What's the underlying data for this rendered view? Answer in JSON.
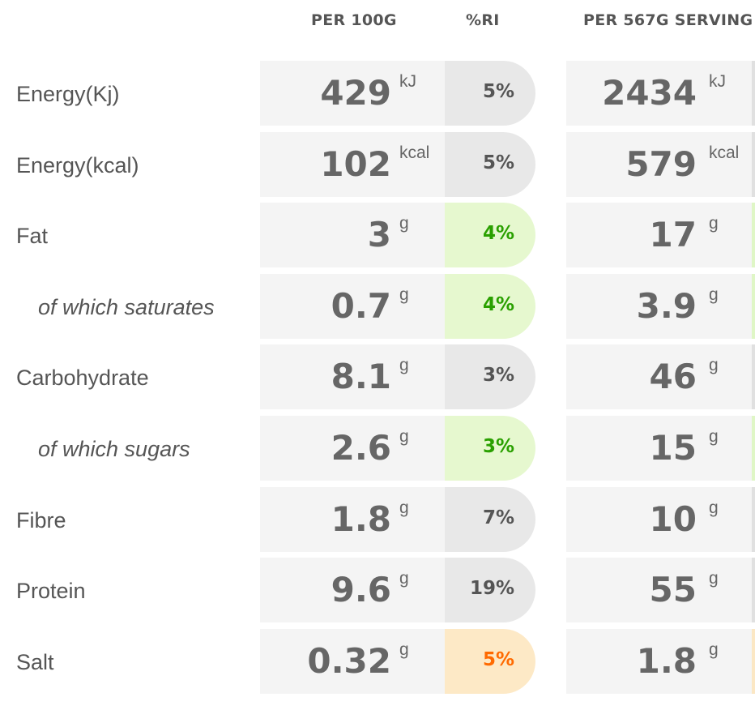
{
  "headers": {
    "per_100g": "PER 100G",
    "ri": "%RI",
    "per_serving": "PER 567G SERVING"
  },
  "rows": [
    {
      "label": "Energy(Kj)",
      "sub": false,
      "per100": "429",
      "per100_unit": "kJ",
      "ri": "5%",
      "ri_level": "neutral",
      "serving": "2434",
      "serving_unit": "kJ"
    },
    {
      "label": "Energy(kcal)",
      "sub": false,
      "per100": "102",
      "per100_unit": "kcal",
      "ri": "5%",
      "ri_level": "neutral",
      "serving": "579",
      "serving_unit": "kcal"
    },
    {
      "label": "Fat",
      "sub": false,
      "per100": "3",
      "per100_unit": "g",
      "ri": "4%",
      "ri_level": "green",
      "serving": "17",
      "serving_unit": "g"
    },
    {
      "label": "of which saturates",
      "sub": true,
      "per100": "0.7",
      "per100_unit": "g",
      "ri": "4%",
      "ri_level": "green",
      "serving": "3.9",
      "serving_unit": "g"
    },
    {
      "label": "Carbohydrate",
      "sub": false,
      "per100": "8.1",
      "per100_unit": "g",
      "ri": "3%",
      "ri_level": "neutral",
      "serving": "46",
      "serving_unit": "g"
    },
    {
      "label": "of which sugars",
      "sub": true,
      "per100": "2.6",
      "per100_unit": "g",
      "ri": "3%",
      "ri_level": "green",
      "serving": "15",
      "serving_unit": "g"
    },
    {
      "label": "Fibre",
      "sub": false,
      "per100": "1.8",
      "per100_unit": "g",
      "ri": "7%",
      "ri_level": "neutral",
      "serving": "10",
      "serving_unit": "g"
    },
    {
      "label": "Protein",
      "sub": false,
      "per100": "9.6",
      "per100_unit": "g",
      "ri": "19%",
      "ri_level": "neutral",
      "serving": "55",
      "serving_unit": "g"
    },
    {
      "label": "Salt",
      "sub": false,
      "per100": "0.32",
      "per100_unit": "g",
      "ri": "5%",
      "ri_level": "amber",
      "serving": "1.8",
      "serving_unit": "g"
    }
  ],
  "colors": {
    "text": "#555555",
    "cell_bg": "#f4f4f4",
    "neutral_pill": "#e8e8e8",
    "green_pill": "#e6f8cf",
    "green_text": "#2aa000",
    "amber_pill": "#fde9c6",
    "amber_text": "#ff6a00"
  }
}
